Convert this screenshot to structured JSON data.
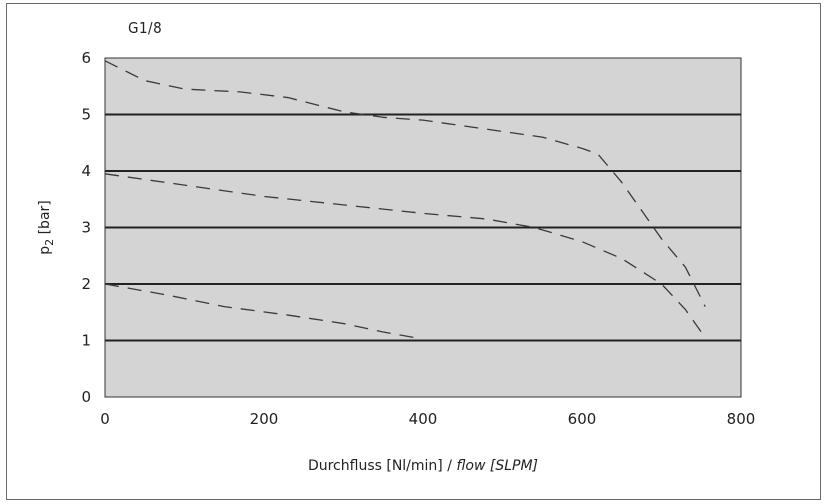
{
  "chart_data": {
    "type": "line",
    "title": "G1/8",
    "xlabel_main": "Durchfluss [Nl/min] / ",
    "xlabel_italic": "flow [SLPM]",
    "ylabel_base": "p",
    "ylabel_sub": "2",
    "ylabel_unit": " [bar]",
    "xlim": [
      0,
      800
    ],
    "ylim": [
      0,
      6
    ],
    "xticks": [
      "0",
      "200",
      "400",
      "600",
      "800"
    ],
    "yticks": [
      "0",
      "1",
      "2",
      "3",
      "4",
      "5",
      "6"
    ],
    "grid": "horizontal",
    "plot_background": "#d4d4d4",
    "line_color": "#3a3a3a",
    "series": [
      {
        "x": [
          0,
          50,
          100,
          170,
          230,
          300,
          350,
          400,
          450,
          500,
          550,
          600,
          620,
          650,
          700,
          730,
          755
        ],
        "y": [
          5.95,
          5.6,
          5.45,
          5.4,
          5.3,
          5.05,
          4.95,
          4.9,
          4.8,
          4.7,
          4.6,
          4.4,
          4.3,
          3.8,
          2.8,
          2.3,
          1.6
        ]
      },
      {
        "x": [
          0,
          100,
          200,
          300,
          400,
          480,
          540,
          600,
          650,
          700,
          730,
          755
        ],
        "y": [
          3.95,
          3.75,
          3.55,
          3.4,
          3.25,
          3.15,
          3.0,
          2.75,
          2.45,
          2.0,
          1.55,
          1.05
        ]
      },
      {
        "x": [
          0,
          80,
          150,
          230,
          300,
          350,
          390
        ],
        "y": [
          2.0,
          1.8,
          1.6,
          1.45,
          1.3,
          1.15,
          1.05
        ]
      }
    ]
  }
}
